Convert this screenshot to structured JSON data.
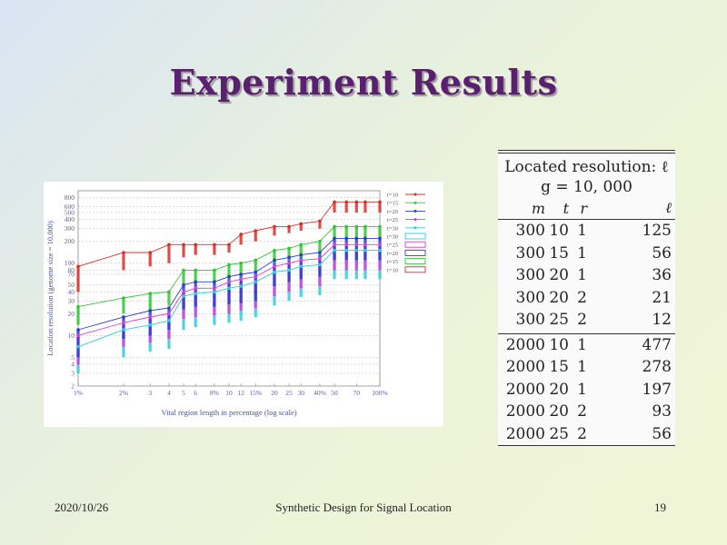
{
  "slide": {
    "title": "Experiment Results"
  },
  "footer": {
    "date": "2020/10/26",
    "center": "Synthetic Design for Signal Location",
    "page": "19"
  },
  "table": {
    "title_line1": "Located resolution: ℓ",
    "title_line2": "g = 10, 000",
    "columns": [
      "m",
      "t",
      "r",
      "ℓ"
    ],
    "groups": [
      [
        [
          "300",
          "10",
          "1",
          "125"
        ],
        [
          "300",
          "15",
          "1",
          "56"
        ],
        [
          "300",
          "20",
          "1",
          "36"
        ],
        [
          "300",
          "20",
          "2",
          "21"
        ],
        [
          "300",
          "25",
          "2",
          "12"
        ]
      ],
      [
        [
          "2000",
          "10",
          "1",
          "477"
        ],
        [
          "2000",
          "15",
          "1",
          "278"
        ],
        [
          "2000",
          "20",
          "1",
          "197"
        ],
        [
          "2000",
          "20",
          "2",
          "93"
        ],
        [
          "2000",
          "25",
          "2",
          "56"
        ]
      ]
    ]
  },
  "chart_data": {
    "type": "line",
    "xlabel": "Vital region length in percentage (log scale)",
    "ylabel": "Location resolution (genome size = 10,000)",
    "x_scale": "log",
    "y_scale": "log",
    "xlim": [
      1,
      100
    ],
    "ylim": [
      2,
      1000
    ],
    "x_ticks": [
      1,
      2,
      3,
      4,
      5,
      6,
      8,
      10,
      12,
      15,
      20,
      25,
      30,
      40,
      50,
      70,
      100
    ],
    "x_tick_labels": [
      "1%",
      "2%",
      "3",
      "4",
      "5",
      "6",
      "8%",
      "10",
      "12",
      "15%",
      "20",
      "25",
      "30",
      "40%",
      "50",
      "70",
      "100%"
    ],
    "y_ticks": [
      2,
      3,
      4,
      5,
      10,
      20,
      30,
      40,
      50,
      70,
      80,
      100,
      200,
      300,
      400,
      500,
      600,
      800
    ],
    "y_tick_labels": [
      "2",
      "3",
      "4",
      "5",
      "10",
      "20",
      "30",
      "40",
      "50",
      "70",
      "80",
      "100",
      "200",
      "300",
      "400",
      "500",
      "600",
      "800"
    ],
    "grid": true,
    "legend_position": "top-right",
    "x": [
      1,
      2,
      3,
      4,
      5,
      6,
      8,
      10,
      12,
      15,
      20,
      25,
      30,
      40,
      50,
      60,
      70,
      80,
      100
    ],
    "series": [
      {
        "name": "t=10",
        "color": "#d4302a",
        "kind": "line",
        "values": [
          90,
          140,
          140,
          180,
          180,
          180,
          180,
          180,
          250,
          280,
          320,
          320,
          350,
          380,
          700,
          700,
          700,
          700,
          700
        ]
      },
      {
        "name": "t=15",
        "color": "#35c23a",
        "kind": "line",
        "values": [
          25,
          33,
          38,
          40,
          80,
          80,
          80,
          95,
          100,
          110,
          150,
          160,
          180,
          200,
          320,
          320,
          320,
          320,
          320
        ]
      },
      {
        "name": "t=20",
        "color": "#2a3ccf",
        "kind": "line",
        "values": [
          12,
          18,
          22,
          24,
          50,
          55,
          55,
          65,
          70,
          75,
          110,
          120,
          130,
          140,
          220,
          220,
          220,
          220,
          220
        ]
      },
      {
        "name": "t=25",
        "color": "#d43fd4",
        "kind": "line",
        "values": [
          10,
          15,
          18,
          20,
          40,
          45,
          45,
          55,
          60,
          65,
          90,
          100,
          110,
          115,
          180,
          180,
          180,
          180,
          180
        ]
      },
      {
        "name": "t=30",
        "color": "#35c8d8",
        "kind": "line",
        "values": [
          7,
          12,
          14,
          16,
          35,
          38,
          40,
          45,
          48,
          55,
          75,
          80,
          90,
          95,
          150,
          150,
          150,
          150,
          150
        ]
      },
      {
        "name": "t=30",
        "color": "#35c8d8",
        "kind": "bar",
        "values": [
          3,
          5,
          6,
          6.5,
          12,
          13,
          14,
          15,
          16,
          18,
          26,
          30,
          34,
          36,
          60,
          60,
          60,
          60,
          60
        ]
      },
      {
        "name": "t=25",
        "color": "#d43fd4",
        "kind": "bar",
        "values": [
          4,
          7,
          8,
          9,
          17,
          18,
          19,
          20,
          22,
          24,
          35,
          40,
          45,
          48,
          80,
          80,
          80,
          80,
          80
        ]
      },
      {
        "name": "t=20",
        "color": "#2a3ccf",
        "kind": "bar",
        "values": [
          5,
          9,
          10,
          12,
          23,
          25,
          25,
          27,
          28,
          30,
          48,
          55,
          60,
          65,
          110,
          110,
          110,
          110,
          110
        ]
      },
      {
        "name": "t=15",
        "color": "#35c23a",
        "kind": "bar",
        "values": [
          14,
          20,
          22,
          26,
          50,
          55,
          55,
          60,
          65,
          70,
          100,
          110,
          120,
          130,
          220,
          220,
          220,
          220,
          220
        ]
      },
      {
        "name": "t=10",
        "color": "#d4302a",
        "kind": "bar",
        "values": [
          40,
          80,
          90,
          100,
          120,
          130,
          130,
          140,
          180,
          200,
          240,
          260,
          280,
          300,
          500,
          500,
          500,
          500,
          500
        ]
      }
    ]
  }
}
